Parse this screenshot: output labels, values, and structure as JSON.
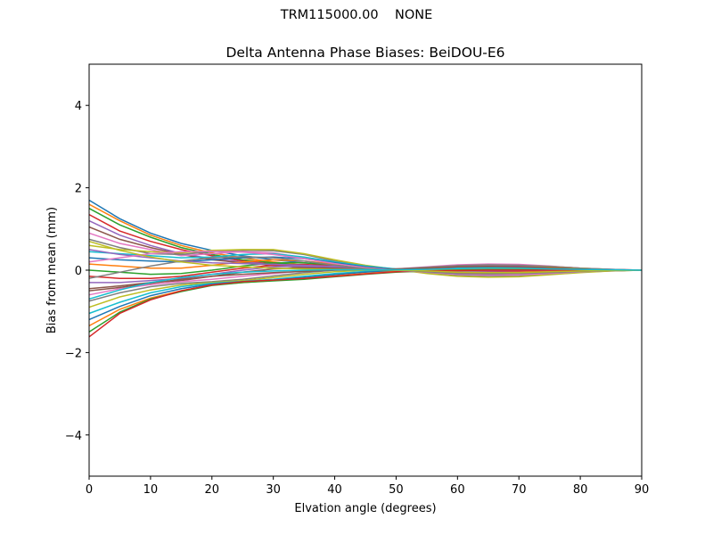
{
  "figure": {
    "suptitle": "TRM115000.00    NONE"
  },
  "chart_data": {
    "type": "line",
    "title": "Delta Antenna Phase Biases: BeiDOU-E6",
    "xlabel": "Elvation angle (degrees)",
    "ylabel": "Bias from mean (mm)",
    "xlim": [
      0,
      90
    ],
    "ylim": [
      -5,
      5
    ],
    "xticks": [
      0,
      10,
      20,
      30,
      40,
      50,
      60,
      70,
      80,
      90
    ],
    "yticks": [
      -4,
      -2,
      0,
      2,
      4
    ],
    "ytick_labels": [
      "−4",
      "−2",
      "0",
      "2",
      "4"
    ],
    "xtick_labels": [
      "0",
      "10",
      "20",
      "30",
      "40",
      "50",
      "60",
      "70",
      "80",
      "90"
    ],
    "grid": false,
    "legend": "none",
    "palette": [
      "#1f77b4",
      "#ff7f0e",
      "#2ca02c",
      "#d62728",
      "#9467bd",
      "#8c564b",
      "#e377c2",
      "#7f7f7f",
      "#bcbd22",
      "#17becf"
    ],
    "x": [
      0,
      5,
      10,
      15,
      20,
      25,
      30,
      35,
      40,
      45,
      50,
      55,
      60,
      65,
      70,
      75,
      80,
      85,
      90
    ],
    "series": [
      {
        "values": [
          1.7,
          1.25,
          0.9,
          0.65,
          0.48,
          0.35,
          0.25,
          0.18,
          0.12,
          0.06,
          0.03,
          0.01,
          -0.02,
          -0.04,
          -0.05,
          -0.04,
          -0.02,
          -0.01,
          0.0
        ]
      },
      {
        "values": [
          1.6,
          1.2,
          0.85,
          0.6,
          0.42,
          0.3,
          0.2,
          0.12,
          0.08,
          0.05,
          0.02,
          0.0,
          -0.02,
          -0.03,
          -0.04,
          -0.03,
          -0.02,
          -0.01,
          0.0
        ]
      },
      {
        "values": [
          1.5,
          1.1,
          0.8,
          0.55,
          0.38,
          0.25,
          0.18,
          0.1,
          0.05,
          0.02,
          0.0,
          0.02,
          0.04,
          0.05,
          0.05,
          0.04,
          0.03,
          0.01,
          0.0
        ]
      },
      {
        "values": [
          1.35,
          0.95,
          0.7,
          0.5,
          0.35,
          0.22,
          0.15,
          0.09,
          0.04,
          0.01,
          0.0,
          -0.02,
          -0.04,
          -0.05,
          -0.05,
          -0.04,
          -0.03,
          -0.01,
          0.0
        ]
      },
      {
        "values": [
          1.2,
          0.85,
          0.6,
          0.4,
          0.28,
          0.2,
          0.14,
          0.08,
          0.03,
          0.0,
          -0.02,
          -0.03,
          -0.03,
          -0.02,
          -0.01,
          0.0,
          0.0,
          0.0,
          0.0
        ]
      },
      {
        "values": [
          1.05,
          0.75,
          0.55,
          0.38,
          0.25,
          0.18,
          0.12,
          0.06,
          0.02,
          0.0,
          -0.01,
          0.01,
          0.03,
          0.04,
          0.04,
          0.03,
          0.02,
          0.01,
          0.0
        ]
      },
      {
        "values": [
          0.9,
          0.65,
          0.5,
          0.35,
          0.4,
          0.45,
          0.42,
          0.3,
          0.18,
          0.08,
          0.02,
          -0.04,
          -0.08,
          -0.1,
          -0.09,
          -0.06,
          -0.03,
          -0.01,
          0.0
        ]
      },
      {
        "values": [
          0.75,
          0.55,
          0.4,
          0.38,
          0.45,
          0.48,
          0.47,
          0.38,
          0.22,
          0.1,
          0.0,
          -0.06,
          -0.12,
          -0.14,
          -0.13,
          -0.09,
          -0.05,
          -0.02,
          0.0
        ]
      },
      {
        "values": [
          0.6,
          0.5,
          0.45,
          0.42,
          0.48,
          0.5,
          0.5,
          0.4,
          0.25,
          0.12,
          0.02,
          -0.08,
          -0.15,
          -0.17,
          -0.16,
          -0.11,
          -0.06,
          -0.02,
          0.0
        ]
      },
      {
        "values": [
          0.45,
          0.4,
          0.35,
          0.3,
          0.32,
          0.38,
          0.4,
          0.32,
          0.2,
          0.1,
          0.03,
          -0.05,
          -0.1,
          -0.12,
          -0.11,
          -0.08,
          -0.04,
          -0.01,
          0.0
        ]
      },
      {
        "values": [
          0.3,
          0.25,
          0.22,
          0.2,
          0.25,
          0.3,
          0.32,
          0.28,
          0.18,
          0.08,
          0.02,
          -0.04,
          -0.08,
          -0.1,
          -0.09,
          -0.06,
          -0.03,
          -0.01,
          0.0
        ]
      },
      {
        "values": [
          0.15,
          0.1,
          0.05,
          0.05,
          0.12,
          0.2,
          0.25,
          0.22,
          0.15,
          0.06,
          0.0,
          -0.03,
          -0.06,
          -0.07,
          -0.06,
          -0.04,
          -0.02,
          -0.01,
          0.0
        ]
      },
      {
        "values": [
          0.0,
          -0.05,
          -0.1,
          -0.08,
          0.0,
          0.1,
          0.18,
          0.18,
          0.12,
          0.05,
          0.0,
          0.03,
          0.06,
          0.07,
          0.06,
          0.04,
          0.02,
          0.01,
          0.0
        ]
      },
      {
        "values": [
          -0.15,
          -0.2,
          -0.2,
          -0.15,
          -0.05,
          0.05,
          0.12,
          0.14,
          0.1,
          0.05,
          0.01,
          0.05,
          0.09,
          0.1,
          0.09,
          0.06,
          0.03,
          0.01,
          0.0
        ]
      },
      {
        "values": [
          -0.3,
          -0.3,
          -0.25,
          -0.2,
          -0.1,
          0.0,
          0.08,
          0.1,
          0.08,
          0.04,
          0.02,
          0.06,
          0.1,
          0.12,
          0.11,
          0.08,
          0.04,
          0.01,
          0.0
        ]
      },
      {
        "values": [
          -0.45,
          -0.38,
          -0.3,
          -0.25,
          -0.15,
          -0.05,
          0.03,
          0.06,
          0.05,
          0.03,
          0.02,
          0.07,
          0.12,
          0.14,
          0.13,
          0.09,
          0.05,
          0.02,
          0.0
        ]
      },
      {
        "values": [
          -0.6,
          -0.45,
          -0.35,
          -0.28,
          -0.22,
          -0.15,
          -0.08,
          -0.02,
          0.02,
          0.02,
          0.03,
          0.08,
          0.13,
          0.15,
          0.14,
          0.1,
          0.05,
          0.02,
          0.0
        ]
      },
      {
        "values": [
          -0.75,
          -0.55,
          -0.4,
          -0.32,
          -0.28,
          -0.22,
          -0.14,
          -0.06,
          0.0,
          0.02,
          0.03,
          0.07,
          0.11,
          0.13,
          0.12,
          0.09,
          0.05,
          0.02,
          0.0
        ]
      },
      {
        "values": [
          -0.9,
          -0.65,
          -0.48,
          -0.36,
          -0.3,
          -0.25,
          -0.18,
          -0.1,
          -0.04,
          0.0,
          0.02,
          0.05,
          0.08,
          0.1,
          0.09,
          0.07,
          0.04,
          0.01,
          0.0
        ]
      },
      {
        "values": [
          -1.05,
          -0.78,
          -0.55,
          -0.4,
          -0.32,
          -0.27,
          -0.22,
          -0.15,
          -0.08,
          -0.03,
          0.0,
          0.03,
          0.06,
          0.07,
          0.07,
          0.05,
          0.03,
          0.01,
          0.0
        ]
      },
      {
        "values": [
          -1.2,
          -0.88,
          -0.62,
          -0.45,
          -0.34,
          -0.28,
          -0.24,
          -0.18,
          -0.11,
          -0.05,
          -0.01,
          0.02,
          0.04,
          0.05,
          0.05,
          0.04,
          0.02,
          0.01,
          0.0
        ]
      },
      {
        "values": [
          -1.35,
          -0.95,
          -0.68,
          -0.5,
          -0.36,
          -0.3,
          -0.25,
          -0.2,
          -0.14,
          -0.08,
          -0.03,
          0.0,
          0.02,
          0.03,
          0.03,
          0.02,
          0.01,
          0.0,
          0.0
        ]
      },
      {
        "values": [
          -1.5,
          -1.02,
          -0.7,
          -0.52,
          -0.37,
          -0.3,
          -0.26,
          -0.22,
          -0.16,
          -0.1,
          -0.05,
          -0.02,
          0.0,
          0.01,
          0.01,
          0.01,
          0.0,
          0.0,
          0.0
        ]
      },
      {
        "values": [
          -1.62,
          -1.05,
          -0.72,
          -0.5,
          -0.36,
          -0.28,
          -0.24,
          -0.2,
          -0.15,
          -0.09,
          -0.04,
          -0.02,
          -0.01,
          0.0,
          0.0,
          0.0,
          0.0,
          0.0,
          0.0
        ]
      },
      {
        "values": [
          0.5,
          0.38,
          0.3,
          0.22,
          0.18,
          0.16,
          0.14,
          0.12,
          0.09,
          0.05,
          0.02,
          0.04,
          0.08,
          0.1,
          0.09,
          0.06,
          0.03,
          0.01,
          0.0
        ]
      },
      {
        "values": [
          -0.5,
          -0.42,
          -0.32,
          -0.22,
          -0.15,
          -0.1,
          -0.06,
          -0.03,
          0.0,
          0.02,
          0.03,
          0.05,
          0.08,
          0.09,
          0.08,
          0.06,
          0.03,
          0.01,
          0.0
        ]
      },
      {
        "values": [
          0.2,
          0.3,
          0.4,
          0.45,
          0.46,
          0.44,
          0.38,
          0.28,
          0.16,
          0.06,
          0.0,
          -0.05,
          -0.1,
          -0.12,
          -0.11,
          -0.08,
          -0.04,
          -0.01,
          0.0
        ]
      },
      {
        "values": [
          -0.2,
          -0.05,
          0.1,
          0.22,
          0.3,
          0.33,
          0.3,
          0.22,
          0.12,
          0.04,
          0.0,
          -0.04,
          -0.08,
          -0.09,
          -0.08,
          -0.06,
          -0.03,
          -0.01,
          0.0
        ]
      },
      {
        "values": [
          0.7,
          0.48,
          0.32,
          0.2,
          0.12,
          0.08,
          0.05,
          0.03,
          0.02,
          0.01,
          0.0,
          -0.02,
          -0.05,
          -0.06,
          -0.06,
          -0.04,
          -0.02,
          -0.01,
          0.0
        ]
      },
      {
        "values": [
          -0.7,
          -0.48,
          -0.3,
          -0.18,
          -0.1,
          -0.05,
          -0.02,
          0.0,
          0.01,
          0.01,
          0.01,
          0.02,
          0.04,
          0.05,
          0.05,
          0.03,
          0.02,
          0.01,
          0.0
        ]
      }
    ]
  }
}
